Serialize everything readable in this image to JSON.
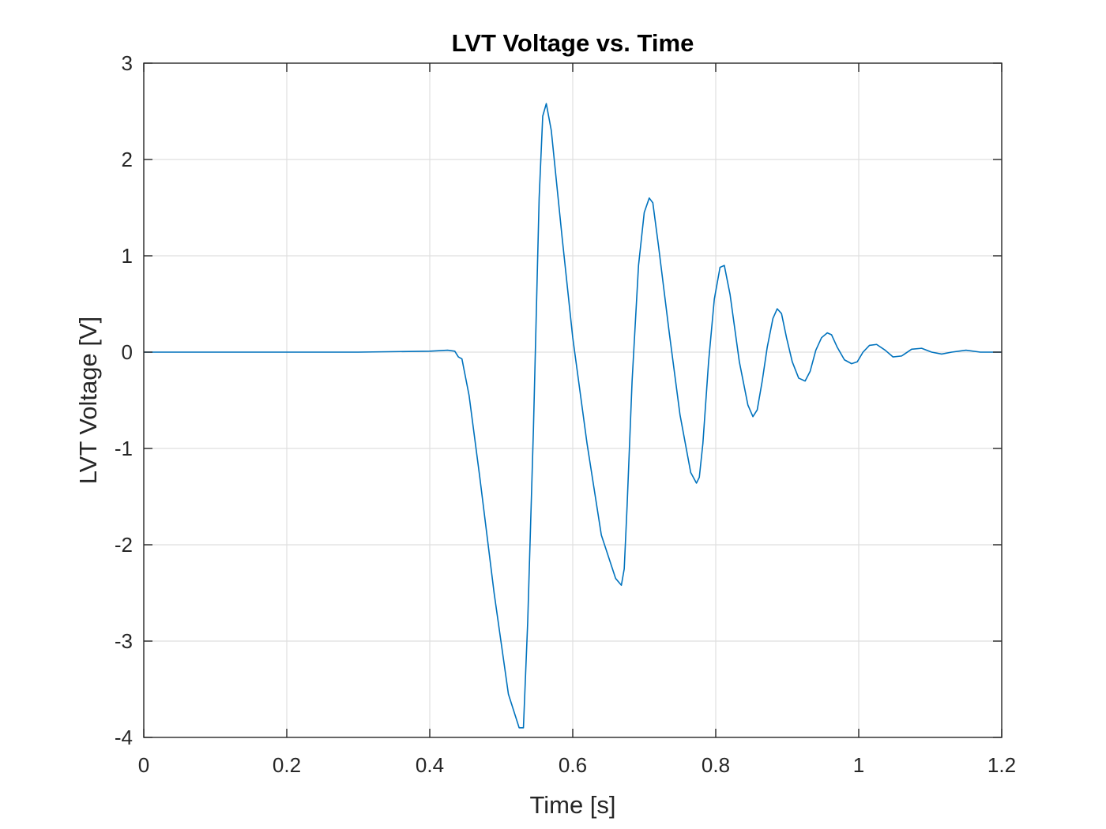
{
  "chart_data": {
    "type": "line",
    "title": "LVT Voltage vs. Time",
    "xlabel": "Time [s]",
    "ylabel": "LVT Voltage [V]",
    "xlim": [
      0,
      1.2
    ],
    "ylim": [
      -4,
      3
    ],
    "grid": true,
    "xticks": [
      0,
      0.2,
      0.4,
      0.6,
      0.8,
      1,
      1.2
    ],
    "xtick_labels": [
      "0",
      "0.2",
      "0.4",
      "0.6",
      "0.8",
      "1",
      "1.2"
    ],
    "yticks": [
      -4,
      -3,
      -2,
      -1,
      0,
      1,
      2,
      3
    ],
    "ytick_labels": [
      "-4",
      "-3",
      "-2",
      "-1",
      "0",
      "1",
      "2",
      "3"
    ],
    "series": [
      {
        "color": "#0072bd",
        "x": [
          0,
          0.1,
          0.2,
          0.3,
          0.4,
          0.425,
          0.435,
          0.44,
          0.445,
          0.455,
          0.47,
          0.49,
          0.51,
          0.525,
          0.531,
          0.537,
          0.545,
          0.553,
          0.558,
          0.563,
          0.57,
          0.585,
          0.6,
          0.62,
          0.64,
          0.66,
          0.668,
          0.672,
          0.676,
          0.683,
          0.692,
          0.7,
          0.707,
          0.712,
          0.72,
          0.735,
          0.75,
          0.765,
          0.773,
          0.777,
          0.782,
          0.79,
          0.798,
          0.806,
          0.812,
          0.82,
          0.833,
          0.845,
          0.852,
          0.858,
          0.865,
          0.872,
          0.88,
          0.886,
          0.892,
          0.899,
          0.907,
          0.916,
          0.925,
          0.932,
          0.94,
          0.948,
          0.956,
          0.962,
          0.97,
          0.98,
          0.99,
          0.998,
          1.006,
          1.015,
          1.025,
          1.037,
          1.048,
          1.06,
          1.074,
          1.088,
          1.102,
          1.116,
          1.13,
          1.15,
          1.17,
          1.2
        ],
        "y": [
          0,
          0,
          0,
          0,
          0.01,
          0.02,
          0.01,
          -0.05,
          -0.07,
          -0.45,
          -1.3,
          -2.5,
          -3.55,
          -3.9,
          -3.9,
          -2.8,
          -0.8,
          1.6,
          2.45,
          2.58,
          2.3,
          1.2,
          0.15,
          -0.95,
          -1.9,
          -2.35,
          -2.42,
          -2.25,
          -1.6,
          -0.3,
          0.9,
          1.45,
          1.6,
          1.55,
          1.1,
          0.2,
          -0.65,
          -1.25,
          -1.36,
          -1.3,
          -0.95,
          -0.1,
          0.55,
          0.88,
          0.9,
          0.6,
          -0.1,
          -0.55,
          -0.67,
          -0.6,
          -0.3,
          0.05,
          0.35,
          0.45,
          0.4,
          0.15,
          -0.1,
          -0.27,
          -0.3,
          -0.2,
          0.02,
          0.15,
          0.2,
          0.18,
          0.05,
          -0.08,
          -0.12,
          -0.1,
          0,
          0.07,
          0.08,
          0.02,
          -0.05,
          -0.04,
          0.03,
          0.04,
          0,
          -0.02,
          0,
          0.02,
          0,
          0
        ]
      }
    ]
  }
}
